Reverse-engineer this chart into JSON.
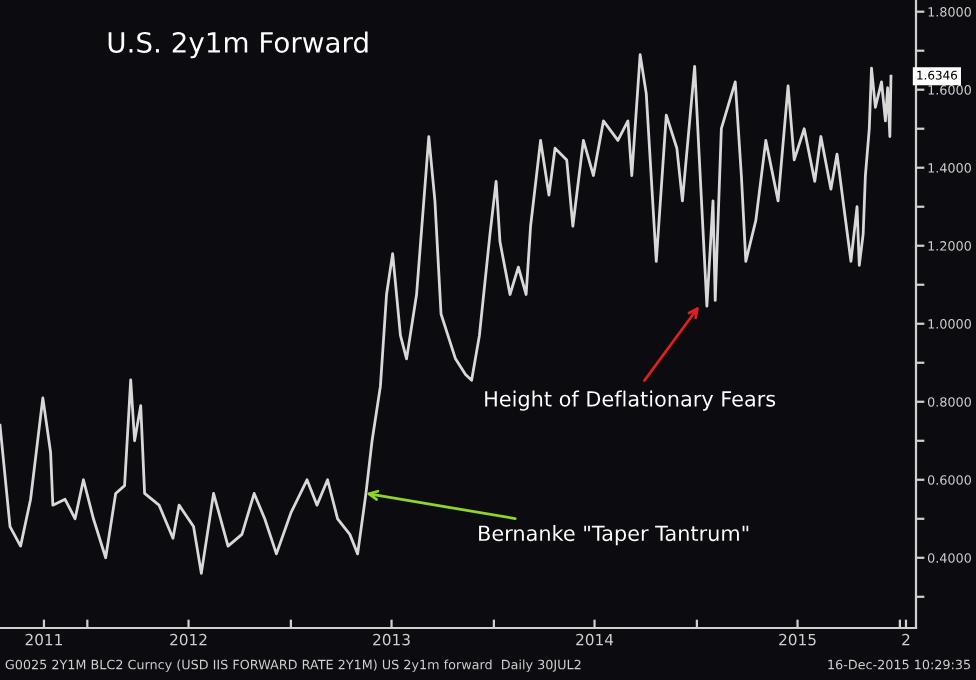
{
  "chart_data": {
    "type": "line",
    "title": "U.S. 2y1m Forward",
    "x": [
      "2011-07-28",
      "2011-08-15",
      "2011-09-03",
      "2011-09-21",
      "2011-10-13",
      "2011-10-27",
      "2011-10-31",
      "2011-11-22",
      "2011-12-10",
      "2011-12-25",
      "2012-01-12",
      "2012-02-03",
      "2012-02-21",
      "2012-03-08",
      "2012-03-19",
      "2012-03-26",
      "2012-04-06",
      "2012-04-13",
      "2012-05-09",
      "2012-06-03",
      "2012-06-14",
      "2012-07-10",
      "2012-07-24",
      "2012-08-15",
      "2012-09-10",
      "2012-10-05",
      "2012-10-27",
      "2012-11-15",
      "2012-12-06",
      "2013-01-01",
      "2013-01-30",
      "2013-02-17",
      "2013-03-08",
      "2013-03-26",
      "2013-04-17",
      "2013-05-01",
      "2013-05-16",
      "2013-05-27",
      "2013-06-11",
      "2013-06-22",
      "2013-07-03",
      "2013-07-17",
      "2013-07-28",
      "2013-08-15",
      "2013-09-06",
      "2013-09-17",
      "2013-09-28",
      "2013-10-24",
      "2013-11-11",
      "2013-11-22",
      "2013-12-06",
      "2013-12-25",
      "2014-01-05",
      "2014-01-12",
      "2014-01-30",
      "2014-02-14",
      "2014-02-28",
      "2014-03-08",
      "2014-03-26",
      "2014-04-10",
      "2014-04-21",
      "2014-05-12",
      "2014-05-23",
      "2014-06-11",
      "2014-06-29",
      "2014-07-17",
      "2014-08-12",
      "2014-08-30",
      "2014-09-06",
      "2014-09-21",
      "2014-10-02",
      "2014-10-20",
      "2014-11-07",
      "2014-11-26",
      "2014-12-06",
      "2014-12-28",
      "2015-01-05",
      "2015-01-19",
      "2015-01-30",
      "2015-02-03",
      "2015-02-14",
      "2015-03-11",
      "2015-03-22",
      "2015-03-30",
      "2015-04-17",
      "2015-05-05",
      "2015-05-27",
      "2015-06-14",
      "2015-06-25",
      "2015-07-13",
      "2015-08-01",
      "2015-08-12",
      "2015-08-30",
      "2015-09-10",
      "2015-09-24",
      "2015-10-05",
      "2015-10-16",
      "2015-10-20",
      "2015-10-27",
      "2015-10-31",
      "2015-11-07",
      "2015-11-11",
      "2015-11-18",
      "2015-11-29",
      "2015-12-06",
      "2015-12-10",
      "2015-12-14",
      "2015-12-16"
    ],
    "series": [
      {
        "color": "#d8d8d8",
        "values": [
          0.74,
          0.48,
          0.43,
          0.55,
          0.81,
          0.67,
          0.535,
          0.55,
          0.5,
          0.6,
          0.5,
          0.4,
          0.565,
          0.585,
          0.856,
          0.7,
          0.79,
          0.565,
          0.535,
          0.45,
          0.535,
          0.48,
          0.36,
          0.565,
          0.43,
          0.46,
          0.565,
          0.5,
          0.41,
          0.515,
          0.6,
          0.535,
          0.6,
          0.5,
          0.46,
          0.41,
          0.565,
          0.7,
          0.84,
          1.075,
          1.18,
          0.97,
          0.91,
          1.075,
          1.48,
          1.315,
          1.025,
          0.91,
          0.87,
          0.855,
          0.97,
          1.23,
          1.365,
          1.21,
          1.075,
          1.145,
          1.075,
          1.25,
          1.47,
          1.33,
          1.45,
          1.42,
          1.25,
          1.47,
          1.38,
          1.52,
          1.47,
          1.52,
          1.38,
          1.69,
          1.59,
          1.16,
          1.535,
          1.45,
          1.315,
          1.66,
          1.435,
          1.045,
          1.315,
          1.06,
          1.5,
          1.62,
          1.38,
          1.16,
          1.265,
          1.47,
          1.315,
          1.61,
          1.42,
          1.5,
          1.365,
          1.48,
          1.345,
          1.435,
          1.28,
          1.16,
          1.3,
          1.15,
          1.23,
          1.38,
          1.5,
          1.655,
          1.555,
          1.62,
          1.52,
          1.605,
          1.48,
          1.6346
        ]
      }
    ],
    "xlim": [
      "2011-07-28",
      "2016-01-30"
    ],
    "xticks": [
      {
        "value": "2011-10-15",
        "label": "2011"
      },
      {
        "value": "2012-01-01",
        "label": null
      },
      {
        "value": "2012-07-01",
        "label": "2012"
      },
      {
        "value": "2013-01-01",
        "label": null
      },
      {
        "value": "2013-07-01",
        "label": "2013"
      },
      {
        "value": "2014-01-01",
        "label": null
      },
      {
        "value": "2014-07-01",
        "label": "2014"
      },
      {
        "value": "2015-01-01",
        "label": null
      },
      {
        "value": "2015-07-01",
        "label": "2015"
      },
      {
        "value": "2016-01-01",
        "label": null
      },
      {
        "value": "2016-01-12",
        "label": "2"
      }
    ],
    "ylim": [
      0.22,
      1.83
    ],
    "yticks": [
      {
        "value": 0.3,
        "label": null
      },
      {
        "value": 0.4,
        "label": "0.4000"
      },
      {
        "value": 0.5,
        "label": null
      },
      {
        "value": 0.6,
        "label": "0.6000"
      },
      {
        "value": 0.7,
        "label": null
      },
      {
        "value": 0.8,
        "label": "0.8000"
      },
      {
        "value": 0.9,
        "label": null
      },
      {
        "value": 1.0,
        "label": "1.0000"
      },
      {
        "value": 1.1,
        "label": null
      },
      {
        "value": 1.2,
        "label": "1.2000"
      },
      {
        "value": 1.3,
        "label": null
      },
      {
        "value": 1.4,
        "label": "1.4000"
      },
      {
        "value": 1.5,
        "label": null
      },
      {
        "value": 1.6,
        "label": "1.6000"
      },
      {
        "value": 1.7,
        "label": null
      },
      {
        "value": 1.8,
        "label": "1.8000"
      }
    ],
    "grid": false,
    "legend": false,
    "annotations": [
      {
        "text": "Bernanke \"Taper Tantrum\"",
        "x": "2013-05-16",
        "y": 0.565
      },
      {
        "text": "Height of Deflationary Fears",
        "x": "2015-01-05",
        "y": 1.045
      },
      {
        "text": "1.6346",
        "x": "2015-12-16",
        "y": 1.6346
      },
      "G0025 2Y1M BLC2 Curncy (USD IIS FORWARD RATE 2Y1M) US 2y1m forward  Daily 30JUL2",
      "16-Dec-2015 10:29:35"
    ]
  }
}
